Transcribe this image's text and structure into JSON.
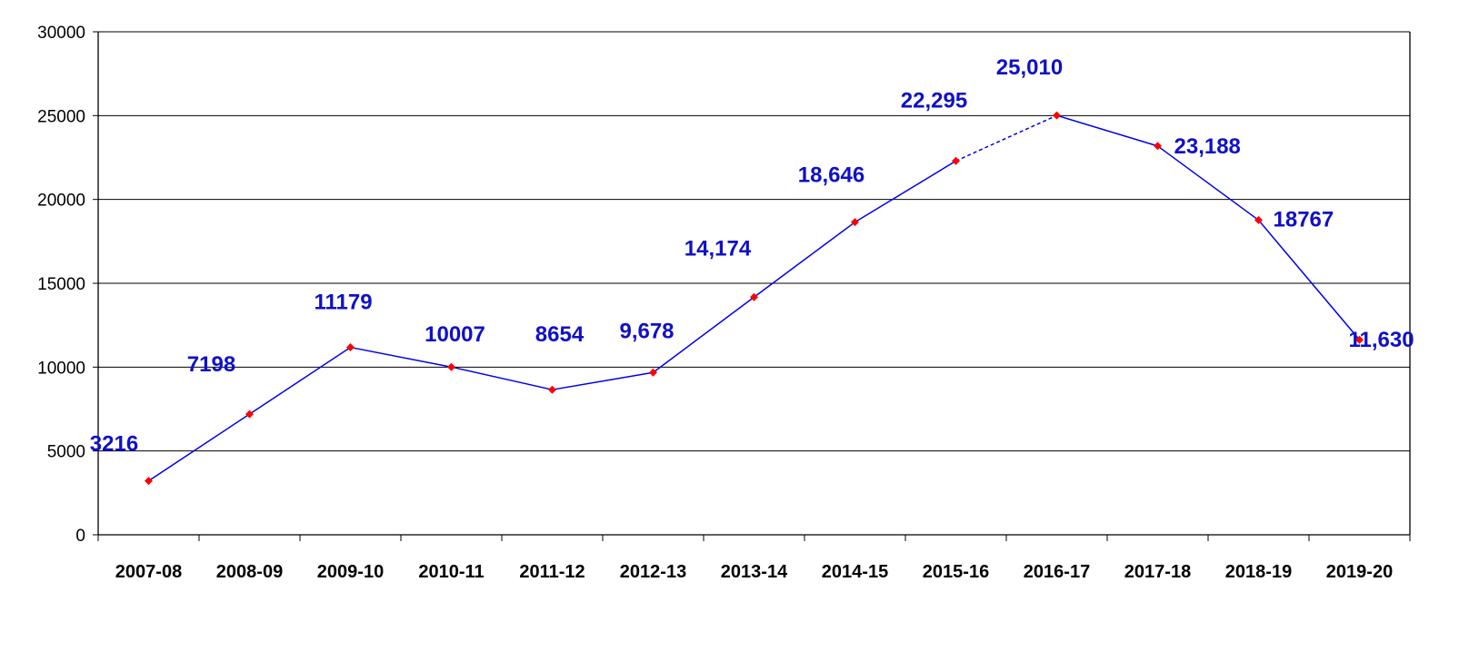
{
  "chart_data": {
    "type": "line",
    "categories": [
      "2007-08",
      "2008-09",
      "2009-10",
      "2010-11",
      "2011-12",
      "2012-13",
      "2013-14",
      "2014-15",
      "2015-16",
      "2016-17",
      "2017-18",
      "2018-19",
      "2019-20"
    ],
    "series": [
      {
        "values": [
          3216,
          7198,
          11179,
          10007,
          8654,
          9678,
          14174,
          18646,
          22295,
          25010,
          23188,
          18767,
          11630
        ]
      }
    ],
    "data_labels": [
      "3216",
      "7198",
      "11179",
      "10007",
      "8654",
      "9,678",
      "14,174",
      "18,646",
      "22,295",
      "25,010",
      "23,188",
      "18767",
      "11,630"
    ],
    "yticks": [
      "0",
      "5000",
      "10000",
      "15000",
      "20000",
      "25000",
      "30000"
    ],
    "ylim": [
      0,
      30000
    ],
    "grid": "horizontal",
    "title": "",
    "xlabel": "",
    "ylabel": "",
    "dashed_segment": {
      "from": "2015-16",
      "to": "2016-17"
    },
    "colors": {
      "line": "#0000ee",
      "marker": "#ff0000",
      "labels": "#1010c8",
      "grid": "#000000"
    }
  }
}
